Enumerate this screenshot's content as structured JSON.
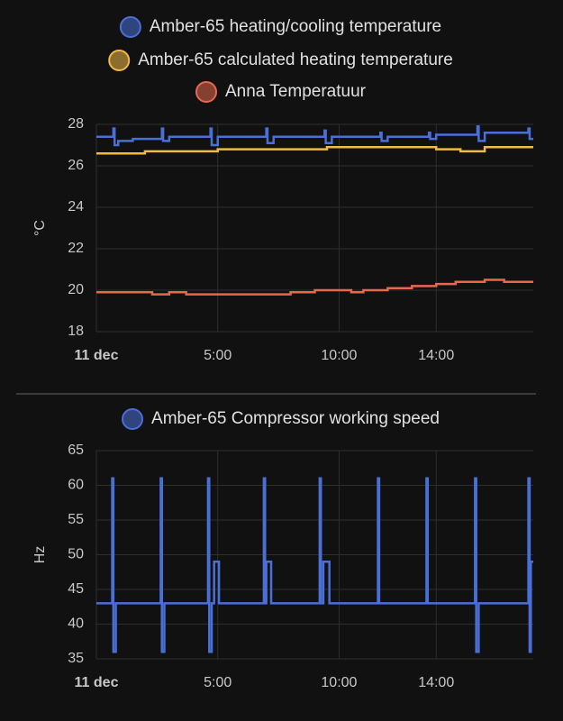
{
  "chart_data": [
    {
      "type": "line",
      "y_label": "°C",
      "grid": true,
      "xlim": [
        0,
        18
      ],
      "xticks": [
        {
          "value": 0,
          "label": "11 dec"
        },
        {
          "value": 5,
          "label": "5:00"
        },
        {
          "value": 10,
          "label": "10:00"
        },
        {
          "value": 14,
          "label": "14:00"
        }
      ],
      "ylim": [
        18,
        28
      ],
      "yticks": [
        18,
        20,
        22,
        24,
        26,
        28
      ],
      "series": [
        {
          "name": "Amber-65 heating/cooling temperature",
          "color": "#4a70d8",
          "x": [
            0,
            0.7,
            0.75,
            0.9,
            1.5,
            2.7,
            2.75,
            3.0,
            4.7,
            4.75,
            5.0,
            7.0,
            7.05,
            7.3,
            9.4,
            9.45,
            9.7,
            11.7,
            11.75,
            12.0,
            13.7,
            13.75,
            14.0,
            15.7,
            15.75,
            16.0,
            17.8,
            17.85,
            18
          ],
          "values": [
            27.4,
            27.8,
            27.0,
            27.2,
            27.3,
            27.8,
            27.2,
            27.4,
            27.8,
            27.0,
            27.4,
            27.8,
            27.1,
            27.4,
            27.7,
            27.1,
            27.4,
            27.6,
            27.2,
            27.4,
            27.6,
            27.3,
            27.5,
            27.9,
            27.2,
            27.6,
            27.8,
            27.3,
            27.3
          ]
        },
        {
          "name": "Amber-65 calculated heating temperature",
          "color": "#f0b948",
          "x": [
            0,
            2.0,
            4.5,
            5.0,
            7.0,
            9.5,
            14.0,
            15.0,
            16.0,
            18
          ],
          "values": [
            26.6,
            26.7,
            26.7,
            26.8,
            26.8,
            26.9,
            26.8,
            26.7,
            26.9,
            26.9
          ]
        },
        {
          "name": "Anna Temperatuur",
          "color": "#e8684e",
          "x": [
            0,
            2.3,
            3.0,
            3.7,
            8.0,
            9.0,
            10.5,
            11.0,
            12.0,
            13.0,
            14.0,
            14.8,
            16.0,
            16.8,
            18
          ],
          "values": [
            19.9,
            19.8,
            19.9,
            19.8,
            19.9,
            20.0,
            19.9,
            20.0,
            20.1,
            20.2,
            20.3,
            20.4,
            20.5,
            20.4,
            20.4
          ]
        }
      ]
    },
    {
      "type": "line",
      "y_label": "Hz",
      "grid": true,
      "xlim": [
        0,
        18
      ],
      "xticks": [
        {
          "value": 0,
          "label": "11 dec"
        },
        {
          "value": 5,
          "label": "5:00"
        },
        {
          "value": 10,
          "label": "10:00"
        },
        {
          "value": 14,
          "label": "14:00"
        }
      ],
      "ylim": [
        35,
        65
      ],
      "yticks": [
        35,
        40,
        45,
        50,
        55,
        60,
        65
      ],
      "series": [
        {
          "name": "Amber-65 Compressor working speed",
          "color": "#4a70d8",
          "x": [
            0,
            0.65,
            0.7,
            0.8,
            2.65,
            2.7,
            2.8,
            4.6,
            4.65,
            4.75,
            4.85,
            5.05,
            6.9,
            6.95,
            7.0,
            7.2,
            9.2,
            9.25,
            9.35,
            9.6,
            11.6,
            11.65,
            13.6,
            13.65,
            15.6,
            15.65,
            15.75,
            17.8,
            17.85,
            17.9,
            18
          ],
          "values": [
            43,
            61,
            36,
            43,
            61,
            36,
            43,
            61,
            36,
            43,
            49,
            43,
            61,
            43,
            49,
            43,
            61,
            43,
            49,
            43,
            61,
            43,
            61,
            43,
            61,
            36,
            43,
            61,
            36,
            49,
            49
          ]
        }
      ]
    }
  ]
}
